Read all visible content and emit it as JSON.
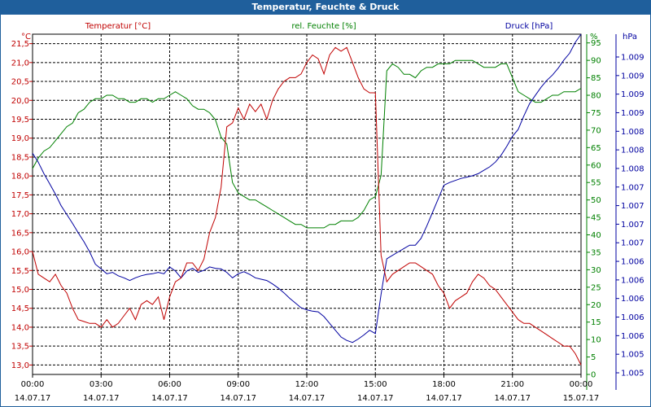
{
  "window": {
    "title": "Temperatur, Feuchte & Druck"
  },
  "chart_data": {
    "type": "line",
    "title": "Temperatur, Feuchte & Druck",
    "grid": true,
    "x_ticks": [
      {
        "time": "00:00",
        "date": "14.07.17"
      },
      {
        "time": "03:00",
        "date": "14.07.17"
      },
      {
        "time": "06:00",
        "date": "14.07.17"
      },
      {
        "time": "09:00",
        "date": "14.07.17"
      },
      {
        "time": "12:00",
        "date": "14.07.17"
      },
      {
        "time": "15:00",
        "date": "14.07.17"
      },
      {
        "time": "18:00",
        "date": "14.07.17"
      },
      {
        "time": "21:00",
        "date": "14.07.17"
      },
      {
        "time": "00:00",
        "date": "15.07.17"
      }
    ],
    "axes": {
      "temperature": {
        "label": "Temperatur [°C]",
        "unit": "°C",
        "color": "#c00000",
        "ylim": [
          12.75,
          21.75
        ],
        "ticks": [
          "13,0",
          "13,5",
          "14,0",
          "14,5",
          "15,0",
          "15,5",
          "16,0",
          "16,5",
          "17,0",
          "17,5",
          "18,0",
          "18,5",
          "19,0",
          "19,5",
          "20,0",
          "20,5",
          "21,0",
          "21,5"
        ]
      },
      "humidity": {
        "label": "rel. Feuchte [%]",
        "unit": "%",
        "color": "#008000",
        "ylim": [
          0,
          97.5
        ],
        "ticks": [
          "0",
          "5",
          "10",
          "15",
          "20",
          "25",
          "30",
          "35",
          "40",
          "45",
          "50",
          "55",
          "60",
          "65",
          "70",
          "75",
          "80",
          "85",
          "90",
          "95"
        ]
      },
      "pressure": {
        "label": "Druck [hPa]",
        "unit": "hPa",
        "color": "#0000a0",
        "ylim": [
          1004.5,
          1009.5
        ],
        "ticks": [
          "1.005",
          "1.005",
          "1.006",
          "1.006",
          "1.006",
          "1.006",
          "1.006",
          "1.007",
          "1.007",
          "1.007",
          "1.007",
          "1.008",
          "1.008",
          "1.008",
          "1.009",
          "1.009",
          "1.009",
          "1.009"
        ]
      }
    },
    "series": [
      {
        "name": "Temperatur [°C]",
        "axis": "temperature",
        "color": "#c00000",
        "x": [
          0,
          0.25,
          0.5,
          0.75,
          1,
          1.25,
          1.5,
          1.75,
          2,
          2.25,
          2.5,
          2.75,
          3,
          3.25,
          3.5,
          3.75,
          4,
          4.25,
          4.5,
          4.75,
          5,
          5.25,
          5.5,
          5.75,
          6,
          6.25,
          6.5,
          6.75,
          7,
          7.25,
          7.5,
          7.75,
          8,
          8.25,
          8.5,
          8.75,
          9,
          9.25,
          9.5,
          9.75,
          10,
          10.25,
          10.5,
          10.75,
          11,
          11.25,
          11.5,
          11.75,
          12,
          12.25,
          12.5,
          12.75,
          13,
          13.25,
          13.5,
          13.75,
          14,
          14.25,
          14.5,
          14.75,
          15,
          15.25,
          15.5,
          15.75,
          16,
          16.25,
          16.5,
          16.75,
          17,
          17.25,
          17.5,
          17.75,
          18,
          18.25,
          18.5,
          18.75,
          19,
          19.25,
          19.5,
          19.75,
          20,
          20.25,
          20.5,
          20.75,
          21,
          21.25,
          21.5,
          21.75,
          22,
          22.25,
          22.5,
          22.75,
          23,
          23.25,
          23.5,
          23.75,
          24
        ],
        "values": [
          16.0,
          15.4,
          15.3,
          15.2,
          15.4,
          15.1,
          14.9,
          14.5,
          14.2,
          14.15,
          14.1,
          14.1,
          14.0,
          14.2,
          14.0,
          14.1,
          14.3,
          14.5,
          14.2,
          14.6,
          14.7,
          14.6,
          14.8,
          14.2,
          14.8,
          15.2,
          15.3,
          15.7,
          15.7,
          15.5,
          15.8,
          16.5,
          16.9,
          17.7,
          19.3,
          19.4,
          19.8,
          19.5,
          19.9,
          19.7,
          19.9,
          19.5,
          20.0,
          20.3,
          20.5,
          20.6,
          20.6,
          20.7,
          21.0,
          21.2,
          21.1,
          20.7,
          21.2,
          21.4,
          21.3,
          21.4,
          21.0,
          20.6,
          20.3,
          20.2,
          20.2,
          15.9,
          15.2,
          15.4,
          15.5,
          15.6,
          15.7,
          15.7,
          15.6,
          15.5,
          15.4,
          15.1,
          14.9,
          14.5,
          14.7,
          14.8,
          14.9,
          15.2,
          15.4,
          15.3,
          15.1,
          15.0,
          14.8,
          14.6,
          14.4,
          14.2,
          14.1,
          14.1,
          14.0,
          13.9,
          13.8,
          13.7,
          13.6,
          13.5,
          13.5,
          13.3,
          13.0
        ]
      },
      {
        "name": "rel. Feuchte [%]",
        "axis": "humidity",
        "color": "#008000",
        "x": [
          0,
          0.25,
          0.5,
          0.75,
          1,
          1.25,
          1.5,
          1.75,
          2,
          2.25,
          2.5,
          2.75,
          3,
          3.25,
          3.5,
          3.75,
          4,
          4.25,
          4.5,
          4.75,
          5,
          5.25,
          5.5,
          5.75,
          6,
          6.25,
          6.5,
          6.75,
          7,
          7.25,
          7.5,
          7.75,
          8,
          8.25,
          8.5,
          8.75,
          9,
          9.25,
          9.5,
          9.75,
          10,
          10.25,
          10.5,
          10.75,
          11,
          11.25,
          11.5,
          11.75,
          12,
          12.25,
          12.5,
          12.75,
          13,
          13.25,
          13.5,
          13.75,
          14,
          14.25,
          14.5,
          14.75,
          15,
          15.25,
          15.5,
          15.75,
          16,
          16.25,
          16.5,
          16.75,
          17,
          17.25,
          17.5,
          17.75,
          18,
          18.25,
          18.5,
          18.75,
          19,
          19.25,
          19.5,
          19.75,
          20,
          20.25,
          20.5,
          20.75,
          21,
          21.25,
          21.5,
          21.75,
          22,
          22.25,
          22.5,
          22.75,
          23,
          23.25,
          23.5,
          23.75,
          24
        ],
        "values": [
          59,
          62,
          64,
          65,
          67,
          69,
          71,
          72,
          75,
          76,
          78,
          79,
          79,
          80,
          80,
          79,
          79,
          78,
          78,
          79,
          79,
          78,
          79,
          79,
          80,
          81,
          80,
          79,
          77,
          76,
          76,
          75,
          73,
          68,
          66,
          55,
          52,
          51,
          50,
          50,
          49,
          48,
          47,
          46,
          45,
          44,
          43,
          43,
          42,
          42,
          42,
          42,
          43,
          43,
          44,
          44,
          44,
          45,
          47,
          50,
          51,
          57,
          87,
          89,
          88,
          86,
          86,
          85,
          87,
          88,
          88,
          89,
          89,
          89,
          90,
          90,
          90,
          90,
          89,
          88,
          88,
          88,
          89,
          89,
          85,
          81,
          80,
          79,
          78,
          78,
          79,
          80,
          80,
          81,
          81,
          81,
          82
        ]
      },
      {
        "name": "Druck [hPa]",
        "axis": "pressure",
        "color": "#0000a0",
        "x": [
          0,
          0.25,
          0.5,
          0.75,
          1,
          1.25,
          1.5,
          1.75,
          2,
          2.25,
          2.5,
          2.75,
          3,
          3.25,
          3.5,
          3.75,
          4,
          4.25,
          4.5,
          4.75,
          5,
          5.25,
          5.5,
          5.75,
          6,
          6.25,
          6.5,
          6.75,
          7,
          7.25,
          7.5,
          7.75,
          8,
          8.25,
          8.5,
          8.75,
          9,
          9.25,
          9.5,
          9.75,
          10,
          10.25,
          10.5,
          10.75,
          11,
          11.25,
          11.5,
          11.75,
          12,
          12.25,
          12.5,
          12.75,
          13,
          13.25,
          13.5,
          13.75,
          14,
          14.25,
          14.5,
          14.75,
          15,
          15.25,
          15.5,
          15.75,
          16,
          16.25,
          16.5,
          16.75,
          17,
          17.25,
          17.5,
          17.75,
          18,
          18.25,
          18.5,
          18.75,
          19,
          19.25,
          19.5,
          19.75,
          20,
          20.25,
          20.5,
          20.75,
          21,
          21.25,
          21.5,
          21.75,
          22,
          22.25,
          22.5,
          22.75,
          23,
          23.25,
          23.5,
          23.75,
          24
        ],
        "values": [
          1007.75,
          1007.62,
          1007.45,
          1007.3,
          1007.15,
          1006.98,
          1006.85,
          1006.72,
          1006.58,
          1006.45,
          1006.3,
          1006.12,
          1006.05,
          1005.98,
          1006.0,
          1005.95,
          1005.92,
          1005.88,
          1005.92,
          1005.95,
          1005.97,
          1005.98,
          1006.0,
          1005.98,
          1006.08,
          1006.02,
          1005.92,
          1006.02,
          1006.06,
          1006.0,
          1006.03,
          1006.08,
          1006.06,
          1006.05,
          1006.0,
          1005.92,
          1005.98,
          1006.01,
          1005.97,
          1005.92,
          1005.9,
          1005.88,
          1005.83,
          1005.77,
          1005.7,
          1005.62,
          1005.55,
          1005.48,
          1005.45,
          1005.43,
          1005.42,
          1005.35,
          1005.25,
          1005.15,
          1005.05,
          1005.0,
          1004.97,
          1005.02,
          1005.08,
          1005.15,
          1005.1,
          1005.68,
          1006.2,
          1006.25,
          1006.3,
          1006.35,
          1006.4,
          1006.4,
          1006.5,
          1006.68,
          1006.88,
          1007.08,
          1007.28,
          1007.32,
          1007.35,
          1007.38,
          1007.4,
          1007.42,
          1007.45,
          1007.5,
          1007.55,
          1007.62,
          1007.72,
          1007.85,
          1008.0,
          1008.1,
          1008.3,
          1008.48,
          1008.6,
          1008.72,
          1008.82,
          1008.9,
          1009.0,
          1009.12,
          1009.22,
          1009.38,
          1009.5
        ]
      }
    ]
  }
}
